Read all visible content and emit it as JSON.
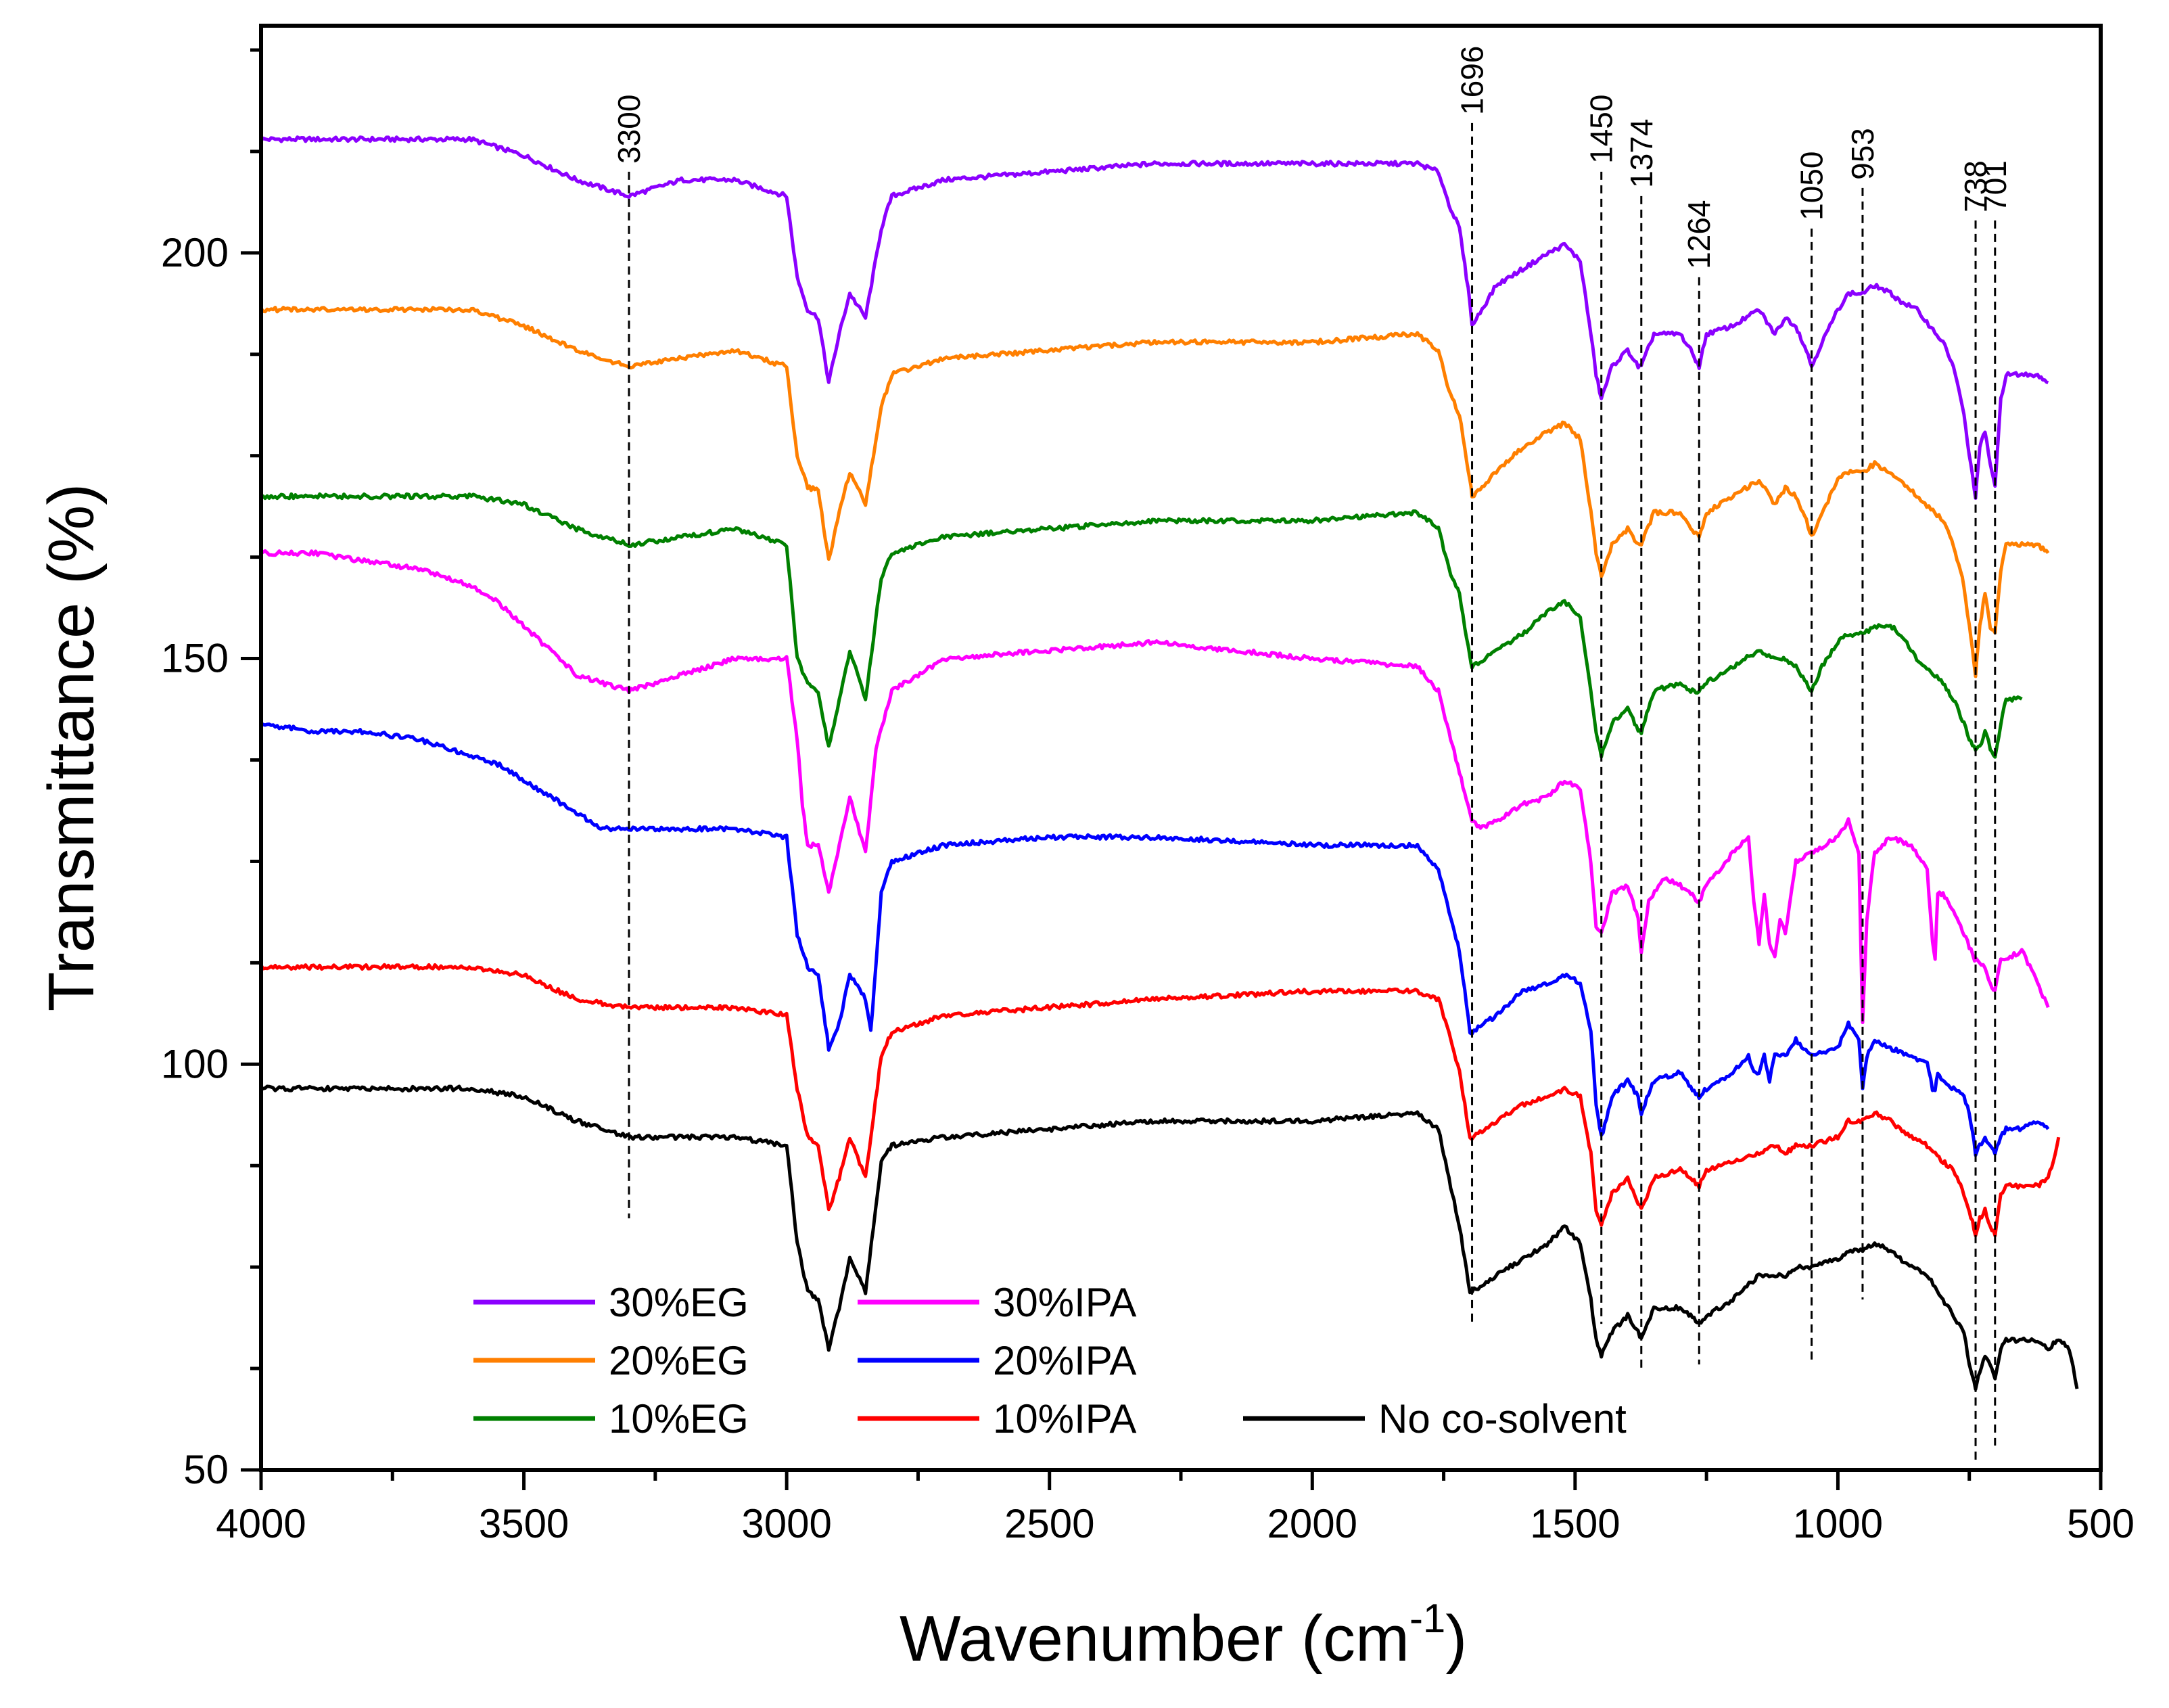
{
  "chart_data": {
    "type": "line",
    "xlabel": "Wavenumber (cm",
    "xlabel_sup": "-1",
    "xlabel_close": ")",
    "ylabel": "Transmittance (%)",
    "xlim": [
      4000,
      500
    ],
    "ylim": [
      50,
      228
    ],
    "xticks": [
      4000,
      3500,
      3000,
      2500,
      2000,
      1500,
      1000,
      500
    ],
    "xtick_labels": [
      "4000",
      "3500",
      "3000",
      "2500",
      "2000",
      "1500",
      "1000",
      "500"
    ],
    "yticks": [
      50,
      100,
      150,
      200
    ],
    "ytick_labels": [
      "50",
      "100",
      "150",
      "200"
    ],
    "peak_markers": [
      {
        "label": "3300",
        "x": 3300,
        "y_top": 210,
        "y_bottom": 81
      },
      {
        "label": "1696",
        "x": 1696,
        "y_top": 216,
        "y_bottom": 68
      },
      {
        "label": "1450",
        "x": 1450,
        "y_top": 210,
        "y_bottom": 68
      },
      {
        "label": "1374",
        "x": 1374,
        "y_top": 207,
        "y_bottom": 62
      },
      {
        "label": "1264",
        "x": 1264,
        "y_top": 197,
        "y_bottom": 63
      },
      {
        "label": "1050",
        "x": 1050,
        "y_top": 203,
        "y_bottom": 63
      },
      {
        "label": "953",
        "x": 953,
        "y_top": 208,
        "y_bottom": 71
      },
      {
        "label": "738",
        "x": 738,
        "y_top": 204,
        "y_bottom": 51
      },
      {
        "label": "701",
        "x": 701,
        "y_top": 204,
        "y_bottom": 53
      }
    ],
    "legend_position": "bottom-left",
    "series": [
      {
        "name": "30%EG",
        "color": "#8B00FF",
        "x": [
          4000,
          3800,
          3600,
          3500,
          3400,
          3300,
          3200,
          3100,
          3000,
          2980,
          2960,
          2940,
          2920,
          2900,
          2880,
          2850,
          2820,
          2800,
          2700,
          2500,
          2300,
          2000,
          1800,
          1760,
          1740,
          1720,
          1700,
          1696,
          1650,
          1600,
          1550,
          1520,
          1490,
          1470,
          1460,
          1450,
          1430,
          1400,
          1380,
          1374,
          1350,
          1300,
          1280,
          1264,
          1250,
          1200,
          1150,
          1120,
          1100,
          1080,
          1060,
          1050,
          1030,
          1000,
          980,
          953,
          930,
          900,
          880,
          850,
          800,
          780,
          760,
          750,
          738,
          730,
          720,
          710,
          701,
          690,
          680,
          650,
          620,
          600
        ],
        "y": [
          214,
          214,
          214,
          212,
          209,
          207,
          209,
          209,
          207,
          197,
          193,
          192,
          184,
          190,
          195,
          192,
          203,
          207,
          209,
          210,
          211,
          211,
          211,
          210,
          206,
          203,
          194,
          191,
          196,
          198,
          200,
          201,
          199,
          190,
          185,
          182,
          186,
          188,
          186,
          186,
          190,
          190,
          188,
          186,
          190,
          191,
          193,
          190,
          192,
          191,
          188,
          186,
          189,
          193,
          195,
          195,
          196,
          195,
          194,
          193,
          189,
          186,
          180,
          175,
          170,
          176,
          178,
          174,
          171,
          182,
          185,
          185,
          185,
          184
        ]
      },
      {
        "name": "20%EG",
        "color": "#FF7F00",
        "x": [
          4000,
          3800,
          3600,
          3500,
          3400,
          3300,
          3200,
          3100,
          3000,
          2980,
          2960,
          2940,
          2920,
          2900,
          2880,
          2850,
          2820,
          2800,
          2700,
          2500,
          2300,
          2000,
          1800,
          1760,
          1740,
          1720,
          1700,
          1696,
          1650,
          1600,
          1550,
          1520,
          1490,
          1470,
          1460,
          1450,
          1430,
          1400,
          1380,
          1374,
          1350,
          1300,
          1280,
          1264,
          1250,
          1200,
          1150,
          1120,
          1100,
          1080,
          1060,
          1050,
          1030,
          1000,
          980,
          953,
          930,
          900,
          880,
          850,
          800,
          780,
          760,
          750,
          738,
          730,
          720,
          710,
          701,
          690,
          680,
          650,
          620,
          600
        ],
        "y": [
          193,
          193,
          193,
          191,
          188,
          186,
          187,
          188,
          186,
          175,
          171,
          171,
          162,
          168,
          173,
          169,
          181,
          185,
          187,
          188,
          189,
          189,
          190,
          188,
          183,
          180,
          172,
          170,
          173,
          176,
          178,
          179,
          177,
          168,
          163,
          160,
          164,
          166,
          164,
          164,
          168,
          168,
          166,
          165,
          168,
          170,
          172,
          169,
          171,
          170,
          167,
          165,
          168,
          172,
          173,
          173,
          174,
          173,
          172,
          170,
          167,
          164,
          159,
          154,
          148,
          154,
          158,
          154,
          153,
          161,
          164,
          164,
          164,
          163
        ]
      },
      {
        "name": "10%EG",
        "color": "#008000",
        "x": [
          4000,
          3800,
          3600,
          3500,
          3400,
          3300,
          3200,
          3100,
          3000,
          2980,
          2960,
          2940,
          2920,
          2900,
          2880,
          2850,
          2820,
          2800,
          2700,
          2500,
          2300,
          2000,
          1800,
          1760,
          1740,
          1720,
          1700,
          1696,
          1650,
          1600,
          1550,
          1520,
          1490,
          1470,
          1460,
          1450,
          1430,
          1400,
          1380,
          1374,
          1350,
          1300,
          1280,
          1264,
          1250,
          1200,
          1150,
          1120,
          1100,
          1080,
          1060,
          1050,
          1030,
          1000,
          980,
          953,
          930,
          900,
          880,
          850,
          800,
          780,
          760,
          750,
          738,
          730,
          720,
          710,
          701,
          690,
          680,
          650
        ],
        "y": [
          170,
          170,
          170,
          169,
          166,
          164,
          165,
          166,
          164,
          150,
          147,
          146,
          139,
          145,
          151,
          145,
          160,
          163,
          165,
          166,
          167,
          167,
          168,
          166,
          161,
          158,
          150,
          149,
          151,
          153,
          156,
          157,
          155,
          146,
          141,
          138,
          142,
          144,
          141,
          141,
          146,
          147,
          146,
          146,
          147,
          149,
          151,
          150,
          150,
          149,
          147,
          146,
          149,
          152,
          153,
          153,
          154,
          154,
          153,
          150,
          147,
          145,
          142,
          140,
          139,
          139,
          141,
          139,
          138,
          142,
          145,
          145
        ]
      },
      {
        "name": "30%IPA",
        "color": "#FF00FF",
        "x": [
          4000,
          3900,
          3800,
          3700,
          3600,
          3550,
          3500,
          3450,
          3400,
          3350,
          3300,
          3250,
          3200,
          3100,
          3000,
          2980,
          2970,
          2960,
          2940,
          2920,
          2900,
          2880,
          2850,
          2830,
          2800,
          2700,
          2500,
          2300,
          2000,
          1800,
          1760,
          1740,
          1720,
          1700,
          1696,
          1680,
          1650,
          1600,
          1550,
          1520,
          1490,
          1470,
          1460,
          1450,
          1430,
          1400,
          1380,
          1374,
          1360,
          1330,
          1300,
          1280,
          1264,
          1250,
          1200,
          1170,
          1160,
          1150,
          1140,
          1130,
          1120,
          1110,
          1100,
          1080,
          1050,
          1000,
          980,
          960,
          953,
          945,
          930,
          900,
          860,
          830,
          820,
          815,
          810,
          800,
          780,
          760,
          740,
          738,
          720,
          710,
          701,
          690,
          680,
          650,
          620,
          600
        ],
        "y": [
          163,
          163,
          162,
          161,
          159,
          157,
          154,
          151,
          148,
          147,
          146,
          147,
          148,
          150,
          150,
          140,
          132,
          127,
          127,
          121,
          127,
          133,
          126,
          139,
          146,
          150,
          151,
          152,
          150,
          149,
          146,
          141,
          136,
          131,
          130,
          129,
          130,
          132,
          133,
          135,
          134,
          125,
          117,
          116,
          121,
          122,
          118,
          114,
          120,
          123,
          122,
          121,
          120,
          122,
          126,
          128,
          120,
          115,
          121,
          115,
          113,
          118,
          116,
          125,
          126,
          128,
          130,
          126,
          105,
          118,
          126,
          128,
          127,
          124,
          115,
          113,
          121,
          121,
          119,
          116,
          113,
          113,
          112,
          110,
          109,
          113,
          113,
          114,
          110,
          107
        ]
      },
      {
        "name": "20%IPA",
        "color": "#0000FF",
        "x": [
          4000,
          3900,
          3800,
          3700,
          3600,
          3550,
          3500,
          3450,
          3400,
          3350,
          3300,
          3250,
          3200,
          3100,
          3000,
          2980,
          2960,
          2940,
          2920,
          2900,
          2880,
          2850,
          2840,
          2820,
          2800,
          2700,
          2500,
          2300,
          2000,
          1800,
          1760,
          1740,
          1720,
          1700,
          1696,
          1650,
          1600,
          1550,
          1520,
          1490,
          1470,
          1460,
          1450,
          1430,
          1400,
          1380,
          1374,
          1350,
          1300,
          1280,
          1264,
          1250,
          1200,
          1170,
          1160,
          1150,
          1140,
          1130,
          1120,
          1100,
          1080,
          1050,
          1000,
          980,
          960,
          953,
          945,
          930,
          900,
          860,
          830,
          820,
          815,
          810,
          800,
          780,
          760,
          750,
          738,
          730,
          720,
          710,
          701,
          690,
          680,
          650,
          620,
          600
        ],
        "y": [
          142,
          141,
          141,
          140,
          138,
          137,
          135,
          133,
          131,
          129,
          129,
          129,
          129,
          129,
          128,
          116,
          112,
          111,
          102,
          105,
          111,
          108,
          104,
          121,
          125,
          127,
          128,
          128,
          127,
          127,
          124,
          119,
          114,
          104,
          104,
          106,
          109,
          110,
          111,
          110,
          104,
          95,
          91,
          96,
          98,
          96,
          94,
          98,
          99,
          97,
          96,
          97,
          99,
          101,
          99,
          99,
          101,
          98,
          101,
          101,
          103,
          101,
          102,
          105,
          103,
          97,
          101,
          103,
          102,
          101,
          100,
          97,
          97,
          99,
          98,
          97,
          96,
          94,
          89,
          90,
          91,
          90,
          89,
          91,
          92,
          92,
          93,
          92
        ]
      },
      {
        "name": "10%IPA",
        "color": "#FF0000",
        "x": [
          4000,
          3800,
          3600,
          3500,
          3400,
          3300,
          3200,
          3100,
          3000,
          2980,
          2960,
          2940,
          2920,
          2900,
          2880,
          2850,
          2820,
          2800,
          2700,
          2500,
          2300,
          2000,
          1800,
          1760,
          1740,
          1720,
          1700,
          1696,
          1650,
          1600,
          1550,
          1520,
          1490,
          1470,
          1460,
          1450,
          1430,
          1400,
          1380,
          1374,
          1350,
          1300,
          1280,
          1264,
          1250,
          1200,
          1150,
          1120,
          1100,
          1080,
          1050,
          1000,
          980,
          953,
          930,
          900,
          860,
          830,
          800,
          780,
          760,
          750,
          738,
          730,
          720,
          710,
          701,
          690,
          680,
          650,
          620,
          600,
          590,
          580
        ],
        "y": [
          112,
          112,
          112,
          111,
          108,
          107,
          107,
          107,
          106,
          97,
          91,
          90,
          82,
          86,
          91,
          86,
          101,
          104,
          106,
          107,
          108,
          109,
          109,
          108,
          104,
          99,
          91,
          91,
          93,
          95,
          96,
          97,
          96,
          89,
          82,
          80,
          84,
          86,
          83,
          82,
          86,
          87,
          86,
          85,
          87,
          88,
          89,
          90,
          89,
          90,
          90,
          91,
          93,
          93,
          94,
          93,
          91,
          90,
          88,
          87,
          84,
          82,
          79,
          81,
          82,
          80,
          79,
          84,
          85,
          85,
          85,
          86,
          88,
          91
        ]
      },
      {
        "name": "No co-solvent",
        "color": "#000000",
        "x": [
          4000,
          3800,
          3600,
          3500,
          3400,
          3300,
          3200,
          3100,
          3000,
          2980,
          2960,
          2940,
          2920,
          2900,
          2880,
          2850,
          2820,
          2800,
          2700,
          2500,
          2300,
          2000,
          1800,
          1760,
          1740,
          1720,
          1700,
          1696,
          1650,
          1600,
          1550,
          1520,
          1490,
          1470,
          1460,
          1450,
          1430,
          1400,
          1380,
          1374,
          1350,
          1300,
          1280,
          1264,
          1250,
          1200,
          1150,
          1100,
          1080,
          1050,
          1000,
          980,
          953,
          930,
          900,
          860,
          830,
          800,
          780,
          760,
          750,
          738,
          730,
          720,
          710,
          701,
          690,
          680,
          650,
          620,
          600,
          580,
          560,
          545
        ],
        "y": [
          97,
          97,
          97,
          96,
          93,
          91,
          91,
          91,
          90,
          78,
          72,
          71,
          65,
          70,
          76,
          72,
          88,
          90,
          91,
          92,
          93,
          93,
          94,
          92,
          86,
          80,
          72,
          72,
          74,
          76,
          78,
          80,
          78,
          71,
          66,
          64,
          67,
          69,
          67,
          66,
          70,
          70,
          69,
          68,
          69,
          71,
          74,
          74,
          75,
          75,
          76,
          77,
          77,
          78,
          77,
          75,
          74,
          71,
          69,
          67,
          63,
          60,
          62,
          64,
          63,
          61,
          65,
          66,
          66,
          66,
          65,
          66,
          65,
          60
        ]
      }
    ],
    "legend": [
      {
        "name": "30%EG",
        "color": "#8B00FF"
      },
      {
        "name": "30%IPA",
        "color": "#FF00FF"
      },
      {
        "name": "20%EG",
        "color": "#FF7F00"
      },
      {
        "name": "20%IPA",
        "color": "#0000FF"
      },
      {
        "name": "10%EG",
        "color": "#008000"
      },
      {
        "name": "10%IPA",
        "color": "#FF0000"
      },
      {
        "name": "No co-solvent",
        "color": "#000000"
      }
    ]
  }
}
